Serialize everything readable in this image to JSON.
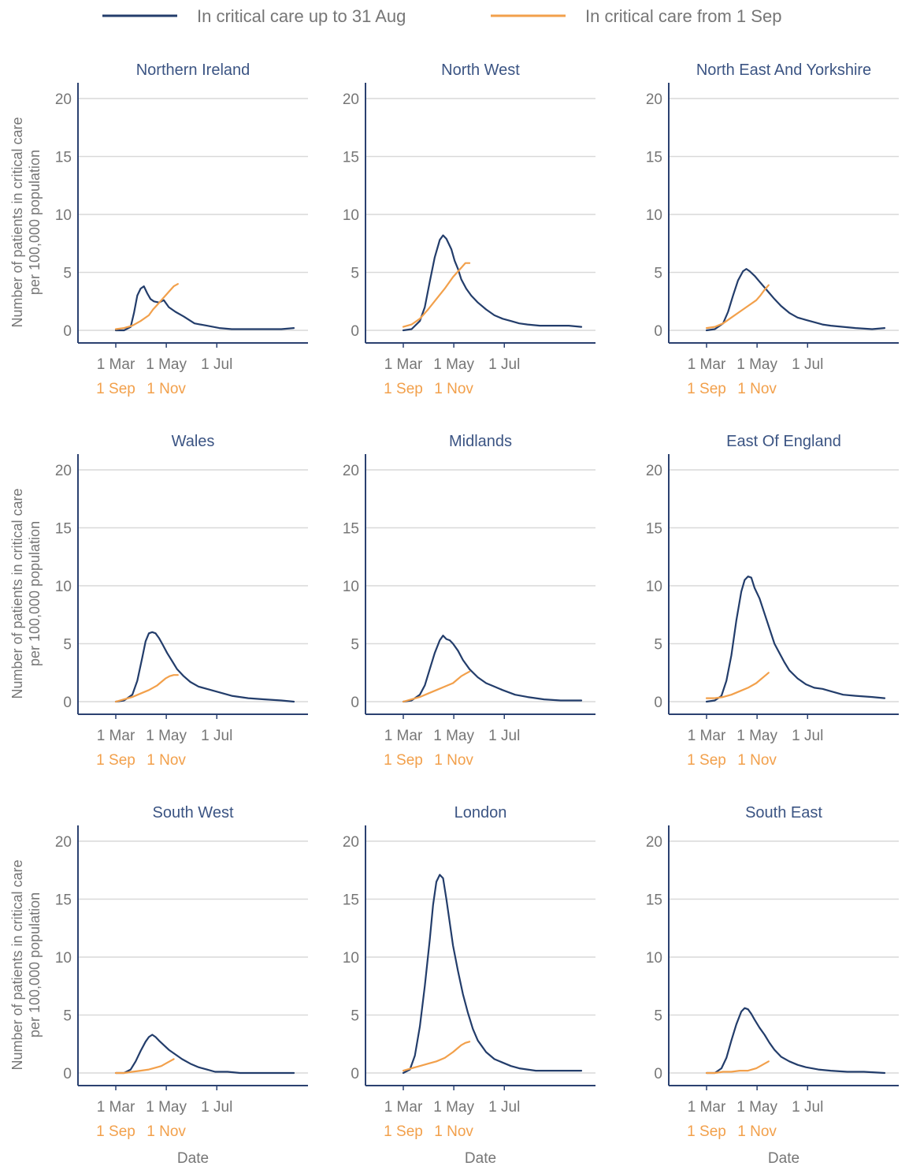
{
  "colors": {
    "series_before": "#233d6b",
    "series_after": "#f2a04b",
    "title_text": "#3b5483",
    "axis_text": "#767676",
    "gridline": "#d9d9d9",
    "axis_line": "#2b4170"
  },
  "chart_data": {
    "type": "line",
    "legend": {
      "placement": "top",
      "entries": [
        {
          "name": "In critical care up to 31 Aug",
          "color": "#233d6b"
        },
        {
          "name": "In critical care from 1 Sep",
          "color": "#f2a04b"
        }
      ]
    },
    "ylabel_line1": "Number of patients in critical care",
    "ylabel_line2": "per 100,000 population",
    "xlabel": "Date",
    "ylim": [
      0,
      20
    ],
    "yticks": [
      0,
      5,
      10,
      15,
      20
    ],
    "grid": "horizontal",
    "x_axis_days": [
      0,
      215
    ],
    "xticks_before": [
      {
        "day": 0,
        "label": "1 Mar"
      },
      {
        "day": 61,
        "label": "1 May"
      },
      {
        "day": 122,
        "label": "1 Jul"
      }
    ],
    "xticks_after": [
      {
        "day": 0,
        "label": "1 Sep"
      },
      {
        "day": 61,
        "label": "1 Nov"
      }
    ],
    "panels": [
      {
        "title": "Northern Ireland",
        "series": [
          {
            "name": "In critical care up to 31 Aug",
            "x": [
              0,
              10,
              18,
              22,
              26,
              30,
              34,
              38,
              42,
              46,
              52,
              58,
              64,
              72,
              82,
              95,
              110,
              125,
              140,
              160,
              180,
              200,
              215
            ],
            "y": [
              0.0,
              0.0,
              0.3,
              1.5,
              3.0,
              3.6,
              3.8,
              3.2,
              2.7,
              2.5,
              2.4,
              2.6,
              2.0,
              1.6,
              1.2,
              0.6,
              0.4,
              0.2,
              0.1,
              0.1,
              0.1,
              0.1,
              0.2
            ]
          },
          {
            "name": "In critical care from 1 Sep",
            "x": [
              0,
              10,
              20,
              30,
              40,
              45,
              50,
              55,
              60,
              65,
              70,
              75
            ],
            "y": [
              0.1,
              0.2,
              0.4,
              0.8,
              1.3,
              1.8,
              2.2,
              2.6,
              3.0,
              3.4,
              3.8,
              4.0
            ]
          }
        ]
      },
      {
        "title": "North West",
        "series": [
          {
            "name": "In critical care up to 31 Aug",
            "x": [
              0,
              10,
              20,
              26,
              32,
              38,
              44,
              48,
              52,
              58,
              62,
              66,
              70,
              76,
              82,
              90,
              100,
              110,
              120,
              130,
              140,
              150,
              165,
              180,
              200,
              215
            ],
            "y": [
              0.0,
              0.1,
              0.8,
              2.0,
              4.2,
              6.3,
              7.8,
              8.2,
              7.9,
              7.0,
              6.0,
              5.3,
              4.4,
              3.6,
              3.0,
              2.4,
              1.8,
              1.3,
              1.0,
              0.8,
              0.6,
              0.5,
              0.4,
              0.4,
              0.4,
              0.3
            ]
          },
          {
            "name": "In critical care from 1 Sep",
            "x": [
              0,
              10,
              20,
              30,
              40,
              50,
              60,
              65,
              70,
              75,
              80
            ],
            "y": [
              0.3,
              0.5,
              1.0,
              1.8,
              2.7,
              3.6,
              4.6,
              5.0,
              5.4,
              5.8,
              5.8
            ]
          }
        ]
      },
      {
        "title": "North East And Yorkshire",
        "series": [
          {
            "name": "In critical care up to 31 Aug",
            "x": [
              0,
              10,
              20,
              26,
              32,
              38,
              44,
              48,
              52,
              58,
              64,
              70,
              76,
              82,
              90,
              100,
              110,
              120,
              130,
              140,
              150,
              165,
              180,
              200,
              215
            ],
            "y": [
              0.0,
              0.1,
              0.6,
              1.6,
              3.0,
              4.3,
              5.1,
              5.3,
              5.1,
              4.7,
              4.2,
              3.7,
              3.2,
              2.7,
              2.1,
              1.5,
              1.1,
              0.9,
              0.7,
              0.5,
              0.4,
              0.3,
              0.2,
              0.1,
              0.2
            ]
          },
          {
            "name": "In critical care from 1 Sep",
            "x": [
              0,
              10,
              20,
              30,
              40,
              50,
              60,
              65,
              70,
              75
            ],
            "y": [
              0.2,
              0.3,
              0.6,
              1.1,
              1.6,
              2.1,
              2.6,
              3.0,
              3.5,
              3.9
            ]
          }
        ]
      },
      {
        "title": "Wales",
        "series": [
          {
            "name": "In critical care up to 31 Aug",
            "x": [
              0,
              10,
              20,
              26,
              32,
              36,
              40,
              44,
              48,
              52,
              56,
              62,
              68,
              74,
              82,
              90,
              100,
              110,
              125,
              140,
              160,
              180,
              200,
              215
            ],
            "y": [
              0.0,
              0.1,
              0.6,
              1.8,
              3.8,
              5.2,
              5.9,
              6.0,
              5.9,
              5.5,
              5.0,
              4.2,
              3.5,
              2.8,
              2.2,
              1.7,
              1.3,
              1.1,
              0.8,
              0.5,
              0.3,
              0.2,
              0.1,
              0.0
            ]
          },
          {
            "name": "In critical care from 1 Sep",
            "x": [
              0,
              10,
              20,
              30,
              40,
              50,
              55,
              60,
              65,
              70,
              75
            ],
            "y": [
              0.0,
              0.2,
              0.4,
              0.7,
              1.0,
              1.4,
              1.7,
              2.0,
              2.2,
              2.3,
              2.3
            ]
          }
        ]
      },
      {
        "title": "Midlands",
        "series": [
          {
            "name": "In critical care up to 31 Aug",
            "x": [
              0,
              10,
              20,
              26,
              32,
              38,
              44,
              48,
              52,
              56,
              60,
              66,
              72,
              80,
              90,
              100,
              110,
              120,
              135,
              150,
              170,
              190,
              215
            ],
            "y": [
              0.0,
              0.1,
              0.6,
              1.4,
              2.8,
              4.2,
              5.3,
              5.7,
              5.4,
              5.3,
              5.0,
              4.4,
              3.6,
              2.8,
              2.1,
              1.6,
              1.3,
              1.0,
              0.6,
              0.4,
              0.2,
              0.1,
              0.1
            ]
          },
          {
            "name": "In critical care from 1 Sep",
            "x": [
              0,
              10,
              20,
              30,
              40,
              50,
              60,
              65,
              70,
              75,
              80
            ],
            "y": [
              0.0,
              0.2,
              0.4,
              0.7,
              1.0,
              1.3,
              1.6,
              1.9,
              2.2,
              2.4,
              2.6
            ]
          }
        ]
      },
      {
        "title": "East Of England",
        "series": [
          {
            "name": "In critical care up to 31 Aug",
            "x": [
              0,
              10,
              18,
              24,
              30,
              36,
              42,
              46,
              50,
              54,
              58,
              64,
              70,
              76,
              82,
              88,
              94,
              100,
              110,
              120,
              130,
              140,
              150,
              165,
              180,
              200,
              215
            ],
            "y": [
              0.0,
              0.1,
              0.5,
              1.8,
              4.0,
              7.0,
              9.5,
              10.5,
              10.8,
              10.7,
              9.8,
              8.9,
              7.6,
              6.3,
              5.0,
              4.2,
              3.4,
              2.7,
              2.0,
              1.5,
              1.2,
              1.1,
              0.9,
              0.6,
              0.5,
              0.4,
              0.3
            ]
          },
          {
            "name": "In critical care from 1 Sep",
            "x": [
              0,
              10,
              20,
              30,
              40,
              50,
              60,
              65,
              70,
              75
            ],
            "y": [
              0.3,
              0.3,
              0.4,
              0.6,
              0.9,
              1.2,
              1.6,
              1.9,
              2.2,
              2.5
            ]
          }
        ]
      },
      {
        "title": "South West",
        "series": [
          {
            "name": "In critical care up to 31 Aug",
            "x": [
              0,
              10,
              18,
              24,
              30,
              36,
              40,
              44,
              48,
              52,
              58,
              64,
              72,
              80,
              90,
              100,
              110,
              120,
              135,
              150,
              170,
              190,
              215
            ],
            "y": [
              0.0,
              0.0,
              0.3,
              1.0,
              1.9,
              2.7,
              3.1,
              3.3,
              3.1,
              2.8,
              2.4,
              2.0,
              1.6,
              1.2,
              0.8,
              0.5,
              0.3,
              0.1,
              0.1,
              0.0,
              0.0,
              0.0,
              0.0
            ]
          },
          {
            "name": "In critical care from 1 Sep",
            "x": [
              0,
              10,
              20,
              30,
              40,
              50,
              55,
              60,
              65,
              70
            ],
            "y": [
              0.0,
              0.0,
              0.1,
              0.2,
              0.3,
              0.5,
              0.6,
              0.8,
              1.0,
              1.2
            ]
          }
        ]
      },
      {
        "title": "London",
        "series": [
          {
            "name": "In critical care up to 31 Aug",
            "x": [
              0,
              8,
              14,
              20,
              26,
              32,
              36,
              40,
              44,
              48,
              52,
              56,
              60,
              66,
              72,
              78,
              84,
              90,
              100,
              110,
              120,
              130,
              140,
              150,
              160,
              175,
              190,
              205,
              215
            ],
            "y": [
              0.0,
              0.3,
              1.5,
              4.0,
              7.5,
              11.5,
              14.5,
              16.5,
              17.1,
              16.8,
              15.0,
              13.0,
              11.0,
              8.8,
              6.8,
              5.2,
              3.8,
              2.8,
              1.8,
              1.2,
              0.9,
              0.6,
              0.4,
              0.3,
              0.2,
              0.2,
              0.2,
              0.2,
              0.2
            ]
          },
          {
            "name": "In critical care from 1 Sep",
            "x": [
              0,
              10,
              20,
              30,
              40,
              50,
              60,
              65,
              70,
              75,
              80
            ],
            "y": [
              0.2,
              0.4,
              0.6,
              0.8,
              1.0,
              1.3,
              1.8,
              2.1,
              2.4,
              2.6,
              2.7
            ]
          }
        ]
      },
      {
        "title": "South East",
        "series": [
          {
            "name": "In critical care up to 31 Aug",
            "x": [
              0,
              10,
              18,
              24,
              30,
              36,
              42,
              46,
              50,
              54,
              58,
              64,
              70,
              76,
              82,
              90,
              100,
              110,
              120,
              135,
              150,
              170,
              190,
              215
            ],
            "y": [
              0.0,
              0.0,
              0.4,
              1.3,
              2.8,
              4.2,
              5.3,
              5.6,
              5.5,
              5.1,
              4.6,
              3.9,
              3.3,
              2.6,
              2.0,
              1.4,
              1.0,
              0.7,
              0.5,
              0.3,
              0.2,
              0.1,
              0.1,
              0.0
            ]
          },
          {
            "name": "In critical care from 1 Sep",
            "x": [
              0,
              10,
              20,
              30,
              40,
              50,
              55,
              60,
              65,
              70,
              75
            ],
            "y": [
              0.0,
              0.0,
              0.1,
              0.1,
              0.2,
              0.2,
              0.3,
              0.4,
              0.6,
              0.8,
              1.0
            ]
          }
        ]
      }
    ]
  }
}
